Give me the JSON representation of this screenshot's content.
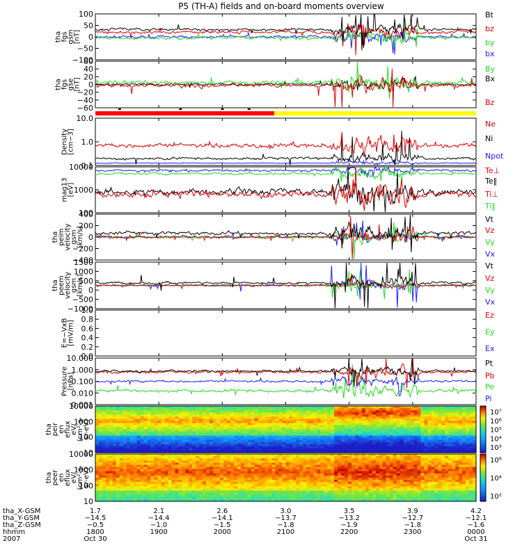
{
  "title": "P5 (TH-A) fields and on-board moments overview",
  "colors": {
    "black": "#000000",
    "red": "#e00000",
    "green": "#22dd22",
    "blue": "#1a1aff",
    "yellow": "#ffff00"
  },
  "chart_data": [
    {
      "type": "line",
      "ylabel": [
        "tha",
        "fgs",
        "gsm",
        "[nT]"
      ],
      "yticks": [
        "100",
        "50",
        "0",
        "−50",
        "−100"
      ],
      "ylim": [
        -100,
        100
      ],
      "legend": [
        {
          "name": "Bt",
          "color": "black"
        },
        {
          "name": "bz",
          "color": "red"
        },
        {
          "name": "by",
          "color": "green"
        },
        {
          "name": "bx",
          "color": "blue"
        }
      ]
    },
    {
      "type": "line",
      "ylabel": [
        "tha",
        "fgs",
        "gse",
        "[nT]"
      ],
      "yticks": [
        "60",
        "40",
        "20",
        "0",
        "−20",
        "−40",
        "−60"
      ],
      "ylim": [
        -60,
        60
      ],
      "legend": [
        {
          "name": "By",
          "color": "green"
        },
        {
          "name": "Bx",
          "color": "black"
        },
        {
          "name": "Bz",
          "color": "red"
        }
      ]
    },
    {
      "type": "line",
      "ylabel": [
        "Density",
        "[cm−3]"
      ],
      "yticks": [
        "10.0",
        "1.0",
        "0.1"
      ],
      "ylim": [
        0.1,
        10
      ],
      "scale": "log",
      "legend": [
        {
          "name": "Ne",
          "color": "red"
        },
        {
          "name": "Ni",
          "color": "black"
        },
        {
          "name": "Npot",
          "color": "blue"
        }
      ]
    },
    {
      "type": "line",
      "ylabel": [
        "mag13",
        "[eV]"
      ],
      "yticks": [
        "10000",
        "1000",
        "100"
      ],
      "ylim": [
        10,
        10000
      ],
      "scale": "log",
      "legend": [
        {
          "name": "Te⊥",
          "color": "red"
        },
        {
          "name": "Te‖",
          "color": "black"
        },
        {
          "name": "Ti⊥",
          "color": "red"
        },
        {
          "name": "Ti‖",
          "color": "green"
        }
      ]
    },
    {
      "type": "line",
      "ylabel": [
        "tha",
        "peim",
        "velocity",
        "gsm",
        "[km/s]"
      ],
      "yticks": [
        "400",
        "200",
        "0",
        "−200",
        "−400"
      ],
      "ylim": [
        -400,
        400
      ],
      "legend": [
        {
          "name": "Vt",
          "color": "black"
        },
        {
          "name": "Vz",
          "color": "red"
        },
        {
          "name": "Vy",
          "color": "green"
        },
        {
          "name": "Vx",
          "color": "blue"
        }
      ]
    },
    {
      "type": "line",
      "ylabel": [
        "tha",
        "peem",
        "velocity",
        "gsm",
        "[km/s]"
      ],
      "yticks": [
        "1500",
        "1000",
        "500",
        "0",
        "−500",
        "−1000"
      ],
      "ylim": [
        -1500,
        1500
      ],
      "legend": [
        {
          "name": "Vt",
          "color": "black"
        },
        {
          "name": "Vz",
          "color": "red"
        },
        {
          "name": "Vy",
          "color": "green"
        },
        {
          "name": "Vx",
          "color": "blue"
        }
      ]
    },
    {
      "type": "line",
      "ylabel": [
        "E=−VxB",
        "[mV/m]"
      ],
      "yticks": [
        "1.0",
        "0.8",
        "0.6",
        "0.4",
        "0.2",
        "0.0"
      ],
      "ylim": [
        0,
        1
      ],
      "legend": [
        {
          "name": "Ez",
          "color": "red"
        },
        {
          "name": "Ey",
          "color": "green"
        },
        {
          "name": "Ex",
          "color": "blue"
        }
      ]
    },
    {
      "type": "line",
      "ylabel": [
        "Pressure",
        "[nPa]"
      ],
      "yticks": [
        "10.000",
        "1.000",
        "0.100",
        "0.010",
        "0.001"
      ],
      "ylim": [
        0.001,
        10
      ],
      "scale": "log",
      "legend": [
        {
          "name": "Pt",
          "color": "black"
        },
        {
          "name": "Pb",
          "color": "red"
        },
        {
          "name": "Pe",
          "color": "green"
        },
        {
          "name": "Pi",
          "color": "blue"
        }
      ]
    },
    {
      "type": "heatmap",
      "ylabel": [
        "tha",
        "peir",
        "en",
        "eflux",
        "eV/",
        "(cm²-s-",
        "sr-eV)"
      ],
      "yticks": [
        "10000",
        "1000",
        "100",
        "10"
      ],
      "ylim": [
        10,
        10000
      ],
      "colorbar_ticks": [
        "10⁷",
        "10⁶",
        "10⁵",
        "10⁴",
        "10³"
      ]
    },
    {
      "type": "heatmap",
      "ylabel": [
        "tha",
        "peer",
        "en",
        "eflux",
        "eV/",
        "(cm²-s-",
        "sr-eV)"
      ],
      "yticks": [
        "10000",
        "1000",
        "100",
        "10"
      ],
      "ylim": [
        10,
        10000
      ],
      "colorbar_ticks": [
        "10⁶",
        "10⁴",
        "10²"
      ]
    }
  ],
  "xaxis": {
    "row_labels": [
      "tha_X-GSM",
      "tha_Y-GSM",
      "tha_Z-GSM",
      "hhmm",
      "2007"
    ],
    "columns": [
      {
        "x": "1.7",
        "y": "−14.5",
        "z": "−0.5",
        "t": "1800",
        "d": "Oct 30"
      },
      {
        "x": "2.1",
        "y": "−14.4",
        "z": "−1.0",
        "t": "1900",
        "d": ""
      },
      {
        "x": "2.6",
        "y": "−14.1",
        "z": "−1.5",
        "t": "2000",
        "d": ""
      },
      {
        "x": "3.0",
        "y": "−13.7",
        "z": "−1.8",
        "t": "2100",
        "d": ""
      },
      {
        "x": "3.5",
        "y": "−13.2",
        "z": "−1.9",
        "t": "2200",
        "d": ""
      },
      {
        "x": "3.9",
        "y": "−12.7",
        "z": "−1.8",
        "t": "2300",
        "d": ""
      },
      {
        "x": "4.2",
        "y": "−12.1",
        "z": "−1.6",
        "t": "0000",
        "d": "Oct 31"
      }
    ]
  }
}
